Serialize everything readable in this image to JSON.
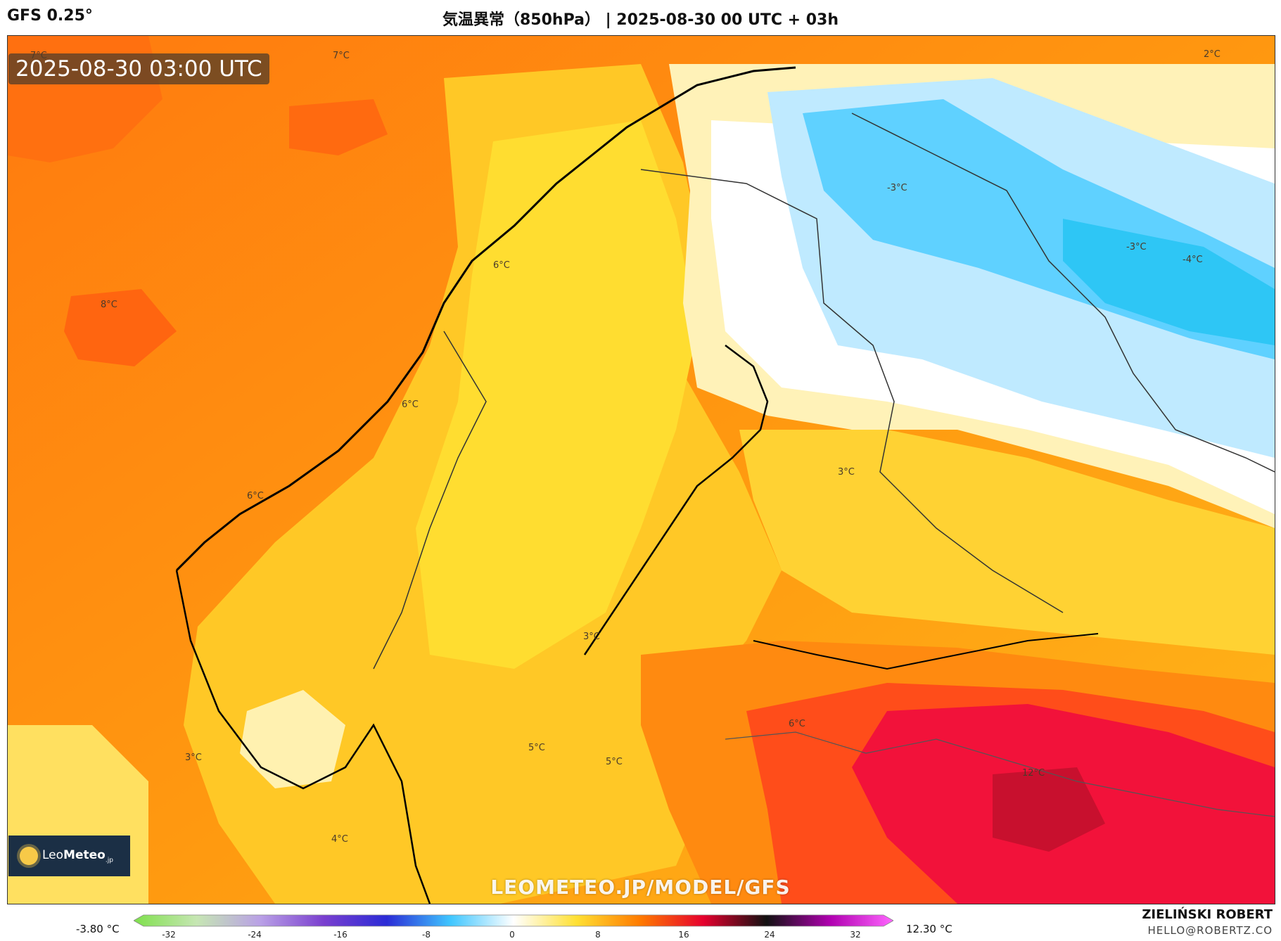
{
  "header": {
    "model": "GFS 0.25°",
    "title": "気温異常（850hPa） | 2025-08-30 00 UTC + 03h"
  },
  "map": {
    "timestamp": "2025-08-30 03:00 UTC",
    "watermark": "LEOMETEO.JP/MODEL/GFS",
    "logo": {
      "name_light": "Leo",
      "name_bold": "Meteo",
      "suffix": ".jp",
      "icon": "sun-icon"
    },
    "labels": [
      "7°C",
      "7°C",
      "2°C",
      "8°C",
      "6°C",
      "-3°C",
      "-3°C",
      "-4°C",
      "6°C",
      "6°C",
      "3°C",
      "3°C",
      "3°C",
      "5°C",
      "5°C",
      "4°C",
      "6°C",
      "12°C"
    ]
  },
  "colorbar": {
    "min_label": "-3.80 °C",
    "max_label": "12.30 °C",
    "ticks": [
      "-32",
      "-24",
      "-16",
      "-8",
      "0",
      "8",
      "16",
      "24",
      "32"
    ],
    "colors": [
      "#7ee04b",
      "#c6e6b3",
      "#b9a0e6",
      "#7a3fcf",
      "#2b2bd6",
      "#3fc6ff",
      "#ffffff",
      "#ffe033",
      "#ff7a00",
      "#e6002e",
      "#111111",
      "#b000b0",
      "#ff66ff"
    ]
  },
  "author": {
    "name": "ZIELIŃSKI ROBERT",
    "email": "HELLO@ROBERTZ.CO"
  }
}
